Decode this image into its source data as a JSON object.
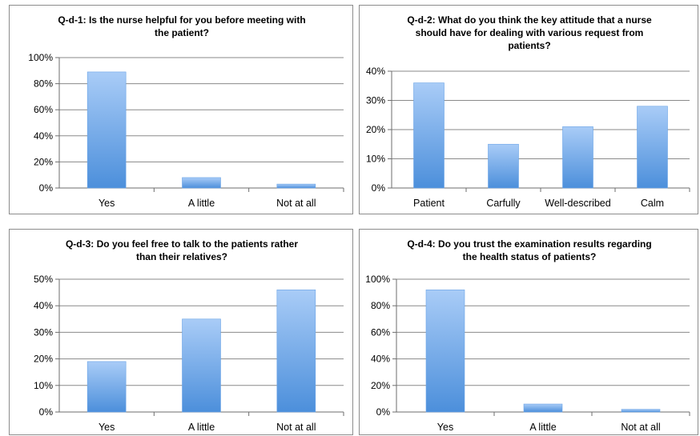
{
  "chart_data": [
    {
      "type": "bar",
      "title": "Q-d-1: Is the nurse helpful for you before meeting with the patient?",
      "title_lines": [
        "Q-d-1: Is the nurse helpful for you before meeting with",
        "the patient?"
      ],
      "categories": [
        "Yes",
        "A little",
        "Not at all"
      ],
      "values": [
        0.89,
        0.08,
        0.03
      ],
      "ylim": [
        0,
        1.0
      ],
      "yticks": [
        0,
        0.2,
        0.4,
        0.6,
        0.8,
        1.0
      ],
      "ytick_labels": [
        "0%",
        "20%",
        "40%",
        "60%",
        "80%",
        "100%"
      ],
      "grid": true,
      "xlabel": "",
      "ylabel": ""
    },
    {
      "type": "bar",
      "title": "Q-d-2: What do you think the key attitude that a nurse should have for dealing with various request from patients?",
      "title_lines": [
        "Q-d-2: What do you think the key attitude that a nurse",
        "should have for dealing with various request from",
        "patients?"
      ],
      "categories": [
        "Patient",
        "Carfully",
        "Well-described",
        "Calm"
      ],
      "values": [
        0.36,
        0.15,
        0.21,
        0.28
      ],
      "ylim": [
        0,
        0.4
      ],
      "yticks": [
        0,
        0.1,
        0.2,
        0.3,
        0.4
      ],
      "ytick_labels": [
        "0%",
        "10%",
        "20%",
        "30%",
        "40%"
      ],
      "grid": true,
      "xlabel": "",
      "ylabel": ""
    },
    {
      "type": "bar",
      "title": "Q-d-3: Do you feel free to talk to the patients rather than their relatives?",
      "title_lines": [
        "Q-d-3: Do you feel free to talk to the patients rather",
        "than their relatives?"
      ],
      "categories": [
        "Yes",
        "A little",
        "Not at all"
      ],
      "values": [
        0.19,
        0.35,
        0.46
      ],
      "ylim": [
        0,
        0.5
      ],
      "yticks": [
        0,
        0.1,
        0.2,
        0.3,
        0.4,
        0.5
      ],
      "ytick_labels": [
        "0%",
        "10%",
        "20%",
        "30%",
        "40%",
        "50%"
      ],
      "grid": true,
      "xlabel": "",
      "ylabel": ""
    },
    {
      "type": "bar",
      "title": "Q-d-4: Do you trust the examination results regarding the health status of patients?",
      "title_lines": [
        "Q-d-4: Do you trust the examination results regarding",
        "the health status of patients?"
      ],
      "categories": [
        "Yes",
        "A little",
        "Not at all"
      ],
      "values": [
        0.92,
        0.06,
        0.02
      ],
      "ylim": [
        0,
        1.0
      ],
      "yticks": [
        0,
        0.2,
        0.4,
        0.6,
        0.8,
        1.0
      ],
      "ytick_labels": [
        "0%",
        "20%",
        "40%",
        "60%",
        "80%",
        "100%"
      ],
      "grid": true,
      "xlabel": "",
      "ylabel": ""
    }
  ],
  "colors": {
    "bar_top": "#a9ccf7",
    "bar_bottom": "#4c8fdb",
    "bar_edge": "#6aa3e6"
  }
}
